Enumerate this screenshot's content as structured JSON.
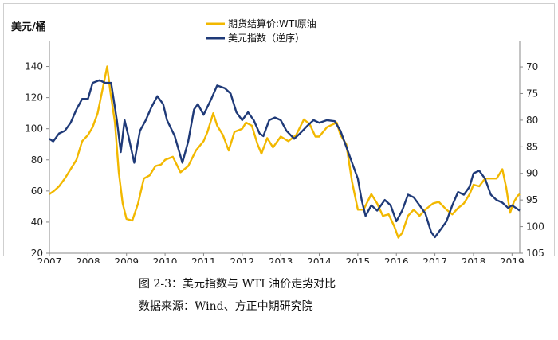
{
  "chart_data": {
    "type": "line",
    "left_unit_label": "美元/桶",
    "x_tick_labels": [
      "2007",
      "2008",
      "2009",
      "2010",
      "2011",
      "2012",
      "2013",
      "2014",
      "2015",
      "2016",
      "2017",
      "2018",
      "2019"
    ],
    "x_range": [
      2007.0,
      2019.2
    ],
    "y_left": {
      "range": [
        20,
        150
      ],
      "ticks": [
        20,
        40,
        60,
        80,
        100,
        120,
        140
      ]
    },
    "y_right": {
      "range": [
        105,
        67
      ],
      "inverted": true,
      "ticks": [
        70,
        75,
        80,
        85,
        90,
        95,
        100,
        105
      ]
    },
    "colors": {
      "wti": "#F2B800",
      "usd": "#1F3A78",
      "frame": "#cfcfcf",
      "axis": "#888888"
    },
    "series": [
      {
        "name": "期货结算价:WTI原油",
        "axis": "left",
        "points": [
          [
            2007.0,
            58
          ],
          [
            2007.12,
            60
          ],
          [
            2007.25,
            63
          ],
          [
            2007.4,
            68
          ],
          [
            2007.55,
            74
          ],
          [
            2007.7,
            80
          ],
          [
            2007.85,
            92
          ],
          [
            2008.0,
            96
          ],
          [
            2008.12,
            101
          ],
          [
            2008.25,
            110
          ],
          [
            2008.4,
            128
          ],
          [
            2008.5,
            140
          ],
          [
            2008.58,
            124
          ],
          [
            2008.7,
            104
          ],
          [
            2008.8,
            72
          ],
          [
            2008.9,
            52
          ],
          [
            2009.0,
            42
          ],
          [
            2009.15,
            41
          ],
          [
            2009.3,
            52
          ],
          [
            2009.45,
            68
          ],
          [
            2009.6,
            70
          ],
          [
            2009.75,
            76
          ],
          [
            2009.9,
            77
          ],
          [
            2010.0,
            80
          ],
          [
            2010.2,
            82
          ],
          [
            2010.4,
            72
          ],
          [
            2010.6,
            76
          ],
          [
            2010.8,
            86
          ],
          [
            2011.0,
            92
          ],
          [
            2011.1,
            98
          ],
          [
            2011.25,
            110
          ],
          [
            2011.35,
            102
          ],
          [
            2011.5,
            96
          ],
          [
            2011.65,
            86
          ],
          [
            2011.8,
            98
          ],
          [
            2012.0,
            100
          ],
          [
            2012.1,
            104
          ],
          [
            2012.25,
            102
          ],
          [
            2012.4,
            90
          ],
          [
            2012.5,
            84
          ],
          [
            2012.65,
            94
          ],
          [
            2012.8,
            88
          ],
          [
            2013.0,
            95
          ],
          [
            2013.2,
            92
          ],
          [
            2013.4,
            96
          ],
          [
            2013.6,
            106
          ],
          [
            2013.75,
            103
          ],
          [
            2013.9,
            95
          ],
          [
            2014.0,
            95
          ],
          [
            2014.2,
            101
          ],
          [
            2014.45,
            104
          ],
          [
            2014.55,
            96
          ],
          [
            2014.7,
            90
          ],
          [
            2014.85,
            66
          ],
          [
            2015.0,
            48
          ],
          [
            2015.15,
            48
          ],
          [
            2015.35,
            58
          ],
          [
            2015.5,
            52
          ],
          [
            2015.65,
            44
          ],
          [
            2015.8,
            45
          ],
          [
            2015.95,
            37
          ],
          [
            2016.05,
            30
          ],
          [
            2016.15,
            33
          ],
          [
            2016.3,
            44
          ],
          [
            2016.45,
            48
          ],
          [
            2016.6,
            44
          ],
          [
            2016.75,
            48
          ],
          [
            2016.95,
            52
          ],
          [
            2017.1,
            53
          ],
          [
            2017.3,
            48
          ],
          [
            2017.45,
            45
          ],
          [
            2017.6,
            49
          ],
          [
            2017.75,
            52
          ],
          [
            2017.9,
            58
          ],
          [
            2018.0,
            64
          ],
          [
            2018.15,
            63
          ],
          [
            2018.3,
            68
          ],
          [
            2018.45,
            68
          ],
          [
            2018.6,
            68
          ],
          [
            2018.75,
            74
          ],
          [
            2018.85,
            62
          ],
          [
            2018.95,
            46
          ],
          [
            2019.05,
            53
          ],
          [
            2019.15,
            57
          ],
          [
            2019.2,
            58
          ]
        ]
      },
      {
        "name": "美元指数（逆序）",
        "axis": "right",
        "points": [
          [
            2007.0,
            83.5
          ],
          [
            2007.1,
            84
          ],
          [
            2007.25,
            82.5
          ],
          [
            2007.4,
            82
          ],
          [
            2007.55,
            80.5
          ],
          [
            2007.7,
            78
          ],
          [
            2007.85,
            76
          ],
          [
            2008.0,
            76
          ],
          [
            2008.12,
            73
          ],
          [
            2008.3,
            72.5
          ],
          [
            2008.45,
            73
          ],
          [
            2008.6,
            73
          ],
          [
            2008.75,
            80
          ],
          [
            2008.85,
            86
          ],
          [
            2008.95,
            80
          ],
          [
            2009.05,
            83
          ],
          [
            2009.2,
            88
          ],
          [
            2009.35,
            82
          ],
          [
            2009.5,
            80
          ],
          [
            2009.65,
            77.5
          ],
          [
            2009.8,
            75.5
          ],
          [
            2009.95,
            77
          ],
          [
            2010.05,
            80
          ],
          [
            2010.25,
            83
          ],
          [
            2010.45,
            88
          ],
          [
            2010.6,
            84
          ],
          [
            2010.75,
            78
          ],
          [
            2010.85,
            77
          ],
          [
            2011.0,
            79
          ],
          [
            2011.2,
            76
          ],
          [
            2011.35,
            73.5
          ],
          [
            2011.55,
            74
          ],
          [
            2011.7,
            75
          ],
          [
            2011.85,
            78.5
          ],
          [
            2012.0,
            80
          ],
          [
            2012.15,
            78.5
          ],
          [
            2012.3,
            80
          ],
          [
            2012.45,
            82.5
          ],
          [
            2012.55,
            83
          ],
          [
            2012.7,
            80
          ],
          [
            2012.85,
            79.5
          ],
          [
            2013.0,
            80
          ],
          [
            2013.15,
            82
          ],
          [
            2013.35,
            83.5
          ],
          [
            2013.5,
            82.5
          ],
          [
            2013.7,
            81
          ],
          [
            2013.85,
            80
          ],
          [
            2014.0,
            80.5
          ],
          [
            2014.2,
            80
          ],
          [
            2014.4,
            80.2
          ],
          [
            2014.55,
            82
          ],
          [
            2014.7,
            85
          ],
          [
            2014.85,
            88
          ],
          [
            2015.0,
            91
          ],
          [
            2015.1,
            95
          ],
          [
            2015.2,
            98
          ],
          [
            2015.35,
            96
          ],
          [
            2015.5,
            97
          ],
          [
            2015.7,
            95
          ],
          [
            2015.85,
            96
          ],
          [
            2016.0,
            99
          ],
          [
            2016.15,
            97
          ],
          [
            2016.3,
            94
          ],
          [
            2016.45,
            94.5
          ],
          [
            2016.6,
            96
          ],
          [
            2016.75,
            97.5
          ],
          [
            2016.9,
            101
          ],
          [
            2017.0,
            102
          ],
          [
            2017.15,
            100.5
          ],
          [
            2017.3,
            99
          ],
          [
            2017.45,
            96
          ],
          [
            2017.6,
            93.5
          ],
          [
            2017.75,
            94
          ],
          [
            2017.9,
            92.5
          ],
          [
            2018.0,
            90
          ],
          [
            2018.15,
            89.5
          ],
          [
            2018.3,
            91
          ],
          [
            2018.45,
            94
          ],
          [
            2018.6,
            95
          ],
          [
            2018.75,
            95.5
          ],
          [
            2018.9,
            96.5
          ],
          [
            2019.0,
            96
          ],
          [
            2019.1,
            96.5
          ],
          [
            2019.2,
            97
          ]
        ]
      }
    ]
  },
  "caption": {
    "title": "图 2-3：美元指数与 WTI 油价走势对比",
    "source": "数据来源：Wind、方正中期研究院"
  }
}
